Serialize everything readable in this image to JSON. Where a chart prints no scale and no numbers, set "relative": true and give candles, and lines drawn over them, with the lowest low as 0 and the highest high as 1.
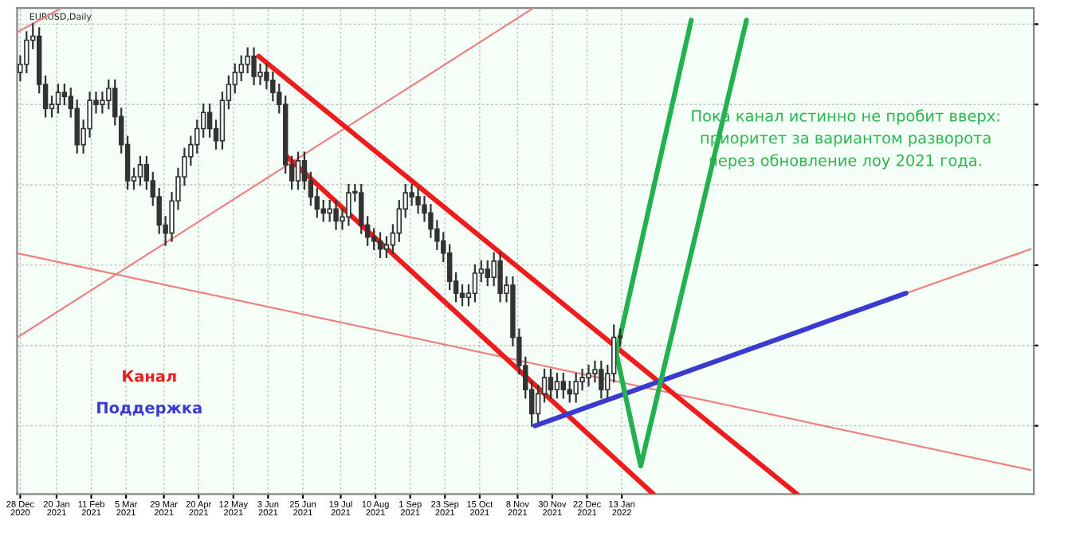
{
  "chart_data": {
    "type": "candlestick",
    "title": "EURUSD,Daily",
    "relative": true,
    "color": "#333333",
    "x": [
      "2020-12-28",
      "2021-01-01",
      "2021-01-05",
      "2021-01-09",
      "2021-01-13",
      "2021-01-17",
      "2021-01-21",
      "2021-01-25",
      "2021-01-29",
      "2021-02-02",
      "2021-02-06",
      "2021-02-10",
      "2021-02-14",
      "2021-02-18",
      "2021-02-22",
      "2021-02-26",
      "2021-03-02",
      "2021-03-06",
      "2021-03-10",
      "2021-03-14",
      "2021-03-18",
      "2021-03-22",
      "2021-03-26",
      "2021-03-30",
      "2021-04-03",
      "2021-04-07",
      "2021-04-11",
      "2021-04-15",
      "2021-04-19",
      "2021-04-23",
      "2021-04-27",
      "2021-05-01",
      "2021-05-05",
      "2021-05-09",
      "2021-05-13",
      "2021-05-17",
      "2021-05-21",
      "2021-05-25",
      "2021-05-29",
      "2021-06-02",
      "2021-06-06",
      "2021-06-10",
      "2021-06-14",
      "2021-06-18",
      "2021-06-22",
      "2021-06-26",
      "2021-06-30",
      "2021-07-04",
      "2021-07-08",
      "2021-07-12",
      "2021-07-16",
      "2021-07-20",
      "2021-07-24",
      "2021-07-28",
      "2021-08-01",
      "2021-08-05",
      "2021-08-09",
      "2021-08-13",
      "2021-08-17",
      "2021-08-21",
      "2021-08-25",
      "2021-08-29",
      "2021-09-02",
      "2021-09-06",
      "2021-09-10",
      "2021-09-14",
      "2021-09-18",
      "2021-09-22",
      "2021-09-26",
      "2021-09-30",
      "2021-10-04",
      "2021-10-08",
      "2021-10-12",
      "2021-10-16",
      "2021-10-20",
      "2021-10-24",
      "2021-10-28",
      "2021-11-01",
      "2021-11-05",
      "2021-11-09",
      "2021-11-13",
      "2021-11-17",
      "2021-11-21",
      "2021-11-25",
      "2021-11-29",
      "2021-12-03",
      "2021-12-07",
      "2021-12-11",
      "2021-12-15",
      "2021-12-19",
      "2021-12-23",
      "2021-12-27",
      "2021-12-31",
      "2022-01-04",
      "2022-01-08",
      "2022-01-12"
    ],
    "ohlc": [
      [
        0.88,
        0.92,
        0.86,
        0.9
      ],
      [
        0.9,
        0.98,
        0.88,
        0.96
      ],
      [
        0.96,
        1,
        0.94,
        0.97
      ],
      [
        0.97,
        0.99,
        0.83,
        0.85
      ],
      [
        0.85,
        0.87,
        0.77,
        0.79
      ],
      [
        0.79,
        0.82,
        0.77,
        0.8
      ],
      [
        0.8,
        0.85,
        0.78,
        0.83
      ],
      [
        0.83,
        0.85,
        0.8,
        0.82
      ],
      [
        0.82,
        0.84,
        0.77,
        0.79
      ],
      [
        0.79,
        0.81,
        0.68,
        0.7
      ],
      [
        0.7,
        0.76,
        0.68,
        0.74
      ],
      [
        0.74,
        0.83,
        0.72,
        0.81
      ],
      [
        0.81,
        0.83,
        0.78,
        0.8
      ],
      [
        0.8,
        0.83,
        0.78,
        0.81
      ],
      [
        0.81,
        0.86,
        0.79,
        0.84
      ],
      [
        0.84,
        0.86,
        0.75,
        0.77
      ],
      [
        0.77,
        0.79,
        0.68,
        0.7
      ],
      [
        0.7,
        0.72,
        0.59,
        0.61
      ],
      [
        0.61,
        0.64,
        0.59,
        0.62
      ],
      [
        0.62,
        0.67,
        0.6,
        0.65
      ],
      [
        0.65,
        0.67,
        0.59,
        0.61
      ],
      [
        0.61,
        0.63,
        0.55,
        0.57
      ],
      [
        0.57,
        0.59,
        0.48,
        0.5
      ],
      [
        0.5,
        0.52,
        0.45,
        0.48
      ],
      [
        0.48,
        0.58,
        0.46,
        0.56
      ],
      [
        0.56,
        0.64,
        0.54,
        0.62
      ],
      [
        0.62,
        0.69,
        0.6,
        0.67
      ],
      [
        0.67,
        0.72,
        0.65,
        0.7
      ],
      [
        0.7,
        0.76,
        0.68,
        0.74
      ],
      [
        0.74,
        0.8,
        0.72,
        0.78
      ],
      [
        0.78,
        0.8,
        0.72,
        0.74
      ],
      [
        0.74,
        0.76,
        0.69,
        0.71
      ],
      [
        0.71,
        0.83,
        0.69,
        0.81
      ],
      [
        0.81,
        0.87,
        0.79,
        0.85
      ],
      [
        0.85,
        0.9,
        0.83,
        0.88
      ],
      [
        0.88,
        0.92,
        0.86,
        0.9
      ],
      [
        0.9,
        0.94,
        0.88,
        0.92
      ],
      [
        0.92,
        0.94,
        0.85,
        0.87
      ],
      [
        0.87,
        0.9,
        0.85,
        0.88
      ],
      [
        0.88,
        0.9,
        0.84,
        0.86
      ],
      [
        0.86,
        0.88,
        0.81,
        0.83
      ],
      [
        0.83,
        0.85,
        0.78,
        0.8
      ],
      [
        0.8,
        0.82,
        0.63,
        0.65
      ],
      [
        0.65,
        0.67,
        0.59,
        0.61
      ],
      [
        0.61,
        0.68,
        0.59,
        0.66
      ],
      [
        0.66,
        0.68,
        0.59,
        0.61
      ],
      [
        0.61,
        0.63,
        0.55,
        0.57
      ],
      [
        0.57,
        0.59,
        0.52,
        0.54
      ],
      [
        0.54,
        0.56,
        0.51,
        0.53
      ],
      [
        0.53,
        0.56,
        0.51,
        0.54
      ],
      [
        0.54,
        0.56,
        0.49,
        0.51
      ],
      [
        0.51,
        0.54,
        0.49,
        0.52
      ],
      [
        0.52,
        0.6,
        0.5,
        0.58
      ],
      [
        0.58,
        0.6,
        0.56,
        0.58
      ],
      [
        0.58,
        0.6,
        0.48,
        0.5
      ],
      [
        0.5,
        0.52,
        0.45,
        0.47
      ],
      [
        0.47,
        0.49,
        0.44,
        0.46
      ],
      [
        0.46,
        0.48,
        0.42,
        0.44
      ],
      [
        0.44,
        0.47,
        0.42,
        0.45
      ],
      [
        0.45,
        0.5,
        0.43,
        0.48
      ],
      [
        0.48,
        0.56,
        0.46,
        0.54
      ],
      [
        0.54,
        0.6,
        0.52,
        0.58
      ],
      [
        0.58,
        0.6,
        0.55,
        0.57
      ],
      [
        0.57,
        0.59,
        0.53,
        0.55
      ],
      [
        0.55,
        0.57,
        0.51,
        0.53
      ],
      [
        0.53,
        0.55,
        0.47,
        0.49
      ],
      [
        0.49,
        0.51,
        0.44,
        0.46
      ],
      [
        0.46,
        0.48,
        0.41,
        0.43
      ],
      [
        0.43,
        0.45,
        0.34,
        0.36
      ],
      [
        0.36,
        0.38,
        0.31,
        0.33
      ],
      [
        0.33,
        0.35,
        0.3,
        0.32
      ],
      [
        0.32,
        0.35,
        0.3,
        0.33
      ],
      [
        0.33,
        0.4,
        0.31,
        0.38
      ],
      [
        0.38,
        0.41,
        0.36,
        0.39
      ],
      [
        0.39,
        0.41,
        0.35,
        0.37
      ],
      [
        0.37,
        0.43,
        0.35,
        0.41
      ],
      [
        0.41,
        0.43,
        0.31,
        0.33
      ],
      [
        0.33,
        0.37,
        0.31,
        0.35
      ],
      [
        0.35,
        0.37,
        0.2,
        0.22
      ],
      [
        0.22,
        0.24,
        0.13,
        0.15
      ],
      [
        0.15,
        0.17,
        0.07,
        0.09
      ],
      [
        0.09,
        0.11,
        0,
        0.03
      ],
      [
        0.03,
        0.1,
        0.01,
        0.08
      ],
      [
        0.08,
        0.14,
        0.06,
        0.12
      ],
      [
        0.12,
        0.14,
        0.07,
        0.09
      ],
      [
        0.09,
        0.13,
        0.07,
        0.11
      ],
      [
        0.11,
        0.13,
        0.07,
        0.09
      ],
      [
        0.09,
        0.11,
        0.06,
        0.08
      ],
      [
        0.08,
        0.13,
        0.06,
        0.11
      ],
      [
        0.11,
        0.14,
        0.09,
        0.12
      ],
      [
        0.12,
        0.15,
        0.1,
        0.13
      ],
      [
        0.13,
        0.16,
        0.11,
        0.14
      ],
      [
        0.14,
        0.16,
        0.07,
        0.09
      ],
      [
        0.09,
        0.15,
        0.07,
        0.13
      ],
      [
        0.13,
        0.25,
        0.11,
        0.22
      ],
      [
        0.22,
        0.24,
        0.2,
        0.22
      ]
    ],
    "series": [
      {
        "type": "line",
        "color": "#f08080",
        "x": [
          "2020-12-26",
          "2021-11-18"
        ],
        "values": [
          0.22,
          1.04
        ]
      },
      {
        "type": "line",
        "color": "#f08080",
        "x": [
          "2020-12-26",
          "2021-01-23"
        ],
        "values": [
          0.98,
          1.04
        ]
      },
      {
        "type": "line",
        "color": "#f08080",
        "x": [
          "2020-12-26",
          "2022-09-29"
        ],
        "values": [
          0.43,
          -0.11
        ]
      },
      {
        "type": "line",
        "color": "#f08080",
        "x": [
          "2022-07-12",
          "2022-09-29"
        ],
        "values": [
          0.33,
          0.44
        ]
      },
      {
        "type": "line",
        "name": "Канал",
        "color": "#ee1c1c",
        "x": [
          "2021-05-28",
          "2022-05-04"
        ],
        "values": [
          0.92,
          -0.17
        ]
      },
      {
        "type": "line",
        "color": "#ee1c1c",
        "x": [
          "2021-06-15",
          "2022-02-02"
        ],
        "values": [
          0.67,
          -0.17
        ]
      },
      {
        "type": "line",
        "name": "Поддержка",
        "color": "#3a3ad0",
        "x": [
          "2021-11-19",
          "2022-07-12"
        ],
        "values": [
          0,
          0.33
        ]
      },
      {
        "type": "line",
        "color": "#22b14c",
        "x": [
          "2022-01-09",
          "2022-02-26"
        ],
        "values": [
          0.17,
          1.01
        ]
      },
      {
        "type": "line",
        "color": "#22b14c",
        "x": [
          "2022-01-09",
          "2022-01-25",
          "2022-04-02"
        ],
        "values": [
          0.19,
          -0.1,
          1.01
        ]
      }
    ],
    "xlim": [
      "2020-12-26",
      "2022-10-01"
    ],
    "xticks": [
      {
        "value": "2020-12-28",
        "label": "28 Dec 2020"
      },
      {
        "value": "2021-01-20",
        "label": "20 Jan 2021"
      },
      {
        "value": "2021-02-11",
        "label": "11 Feb 2021"
      },
      {
        "value": "2021-03-05",
        "label": "5 Mar 2021"
      },
      {
        "value": "2021-03-29",
        "label": "29 Mar 2021"
      },
      {
        "value": "2021-04-20",
        "label": "20 Apr 2021"
      },
      {
        "value": "2021-05-12",
        "label": "12 May 2021"
      },
      {
        "value": "2021-06-03",
        "label": "3 Jun 2021"
      },
      {
        "value": "2021-06-25",
        "label": "25 Jun 2021"
      },
      {
        "value": "2021-07-19",
        "label": "19 Jul 2021"
      },
      {
        "value": "2021-08-10",
        "label": "10 Aug 2021"
      },
      {
        "value": "2021-09-01",
        "label": "1 Sep 2021"
      },
      {
        "value": "2021-09-23",
        "label": "23 Sep 2021"
      },
      {
        "value": "2021-10-15",
        "label": "15 Oct 2021"
      },
      {
        "value": "2021-11-08",
        "label": "8 Nov 2021"
      },
      {
        "value": "2021-11-30",
        "label": "30 Nov 2021"
      },
      {
        "value": "2021-12-22",
        "label": "22 Dec 2021"
      },
      {
        "value": "2022-01-13",
        "label": "13 Jan 2022"
      }
    ],
    "tick_labels": "x",
    "grid": true,
    "legend": "left",
    "annotations": [
      "Пока канал истинно не пробит вверх:\nприоритет за вариантом разворота\nчерез обновление лоу 2021 года."
    ]
  }
}
